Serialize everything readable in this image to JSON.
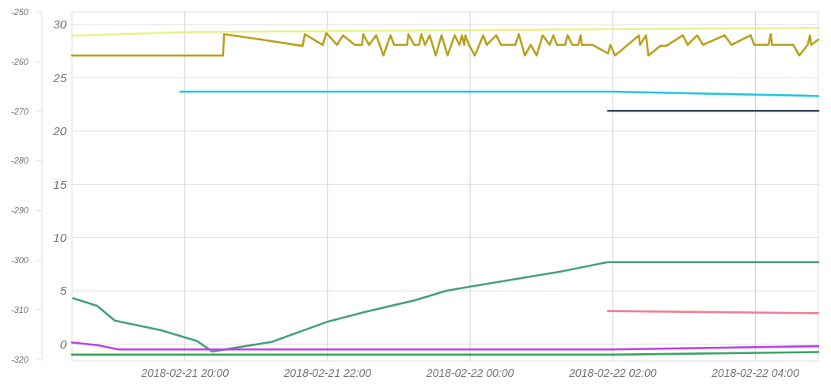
{
  "chart_data": {
    "type": "line",
    "xlim": [
      "2018-02-21T18:25",
      "2018-02-22T04:53"
    ],
    "xticks": [
      {
        "value": "2018-02-21T20:00",
        "label": "2018-02-21 20:00"
      },
      {
        "value": "2018-02-21T22:00",
        "label": "2018-02-21 22:00"
      },
      {
        "value": "2018-02-22T00:00",
        "label": "2018-02-22 00:00"
      },
      {
        "value": "2018-02-22T02:00",
        "label": "2018-02-22 02:00"
      },
      {
        "value": "2018-02-22T04:00",
        "label": "2018-02-22 04:00"
      }
    ],
    "ylim": [
      -1.6,
      31.2
    ],
    "yticks": [
      0,
      5,
      10,
      15,
      20,
      25,
      30
    ],
    "y2lim": [
      -320.3,
      -250
    ],
    "y2ticks": [
      -250,
      -260,
      -270,
      -280,
      -290,
      -300,
      -310,
      -320
    ],
    "grid": true,
    "marker": "none",
    "line_style": "solid",
    "series": [
      {
        "color": "#eaf28a",
        "x": [
          "2018-02-21T18:25",
          "2018-02-21T20:00",
          "2018-02-22T04:53"
        ],
        "values": [
          28.95,
          29.3,
          29.7
        ]
      },
      {
        "color": "#b8a21c",
        "x": [
          "2018-02-21T18:25",
          "2018-02-21T20:32",
          "2018-02-21T20:33",
          "2018-02-21T21:04",
          "2018-02-21T21:39",
          "2018-02-21T21:41",
          "2018-02-21T21:56",
          "2018-02-21T21:59",
          "2018-02-21T22:08",
          "2018-02-21T22:13",
          "2018-02-21T22:23",
          "2018-02-21T22:29",
          "2018-02-21T22:30",
          "2018-02-21T22:35",
          "2018-02-21T22:41",
          "2018-02-21T22:47",
          "2018-02-21T22:53",
          "2018-02-21T22:56",
          "2018-02-21T23:07",
          "2018-02-21T23:08",
          "2018-02-21T23:13",
          "2018-02-21T23:17",
          "2018-02-21T23:19",
          "2018-02-21T23:22",
          "2018-02-21T23:26",
          "2018-02-21T23:31",
          "2018-02-21T23:36",
          "2018-02-21T23:41",
          "2018-02-21T23:47",
          "2018-02-21T23:51",
          "2018-02-21T23:53",
          "2018-02-21T23:55",
          "2018-02-21T23:56",
          "2018-02-21T23:59",
          "2018-02-22T00:04",
          "2018-02-22T00:11",
          "2018-02-22T00:14",
          "2018-02-22T00:22",
          "2018-02-22T00:26",
          "2018-02-22T00:38",
          "2018-02-22T00:41",
          "2018-02-22T00:46",
          "2018-02-22T00:51",
          "2018-02-22T00:56",
          "2018-02-22T01:01",
          "2018-02-22T01:07",
          "2018-02-22T01:10",
          "2018-02-22T01:13",
          "2018-02-22T01:20",
          "2018-02-22T01:22",
          "2018-02-22T01:26",
          "2018-02-22T01:31",
          "2018-02-22T01:33",
          "2018-02-22T01:34",
          "2018-02-22T01:43",
          "2018-02-22T01:56",
          "2018-02-22T01:58",
          "2018-02-22T02:02",
          "2018-02-22T02:22",
          "2018-02-22T02:23",
          "2018-02-22T02:28",
          "2018-02-22T02:30",
          "2018-02-22T02:40",
          "2018-02-22T02:45",
          "2018-02-22T02:59",
          "2018-02-22T03:03",
          "2018-02-22T03:11",
          "2018-02-22T03:16",
          "2018-02-22T03:34",
          "2018-02-22T03:40",
          "2018-02-22T03:56",
          "2018-02-22T03:59",
          "2018-02-22T04:11",
          "2018-02-22T04:13",
          "2018-02-22T04:14",
          "2018-02-22T04:32",
          "2018-02-22T04:37",
          "2018-02-22T04:44",
          "2018-02-22T04:46",
          "2018-02-22T04:47",
          "2018-02-22T04:53"
        ],
        "values": [
          27.1,
          27.1,
          29.1,
          28.6,
          28.0,
          29.1,
          28.1,
          29.2,
          28.1,
          29.0,
          28.1,
          28.1,
          29.1,
          28.1,
          29.0,
          27.1,
          29.0,
          28.1,
          28.1,
          29.1,
          28.1,
          28.1,
          29.1,
          28.1,
          29.0,
          27.1,
          29.0,
          27.1,
          29.0,
          28.1,
          29.0,
          28.1,
          29.0,
          28.1,
          27.1,
          29.0,
          28.1,
          29.0,
          28.1,
          28.1,
          29.1,
          27.1,
          28.1,
          27.1,
          29.0,
          28.1,
          29.0,
          28.1,
          28.1,
          29.0,
          28.1,
          28.1,
          29.0,
          28.1,
          28.1,
          27.3,
          28.1,
          27.1,
          29.0,
          28.1,
          29.0,
          27.1,
          28.0,
          28.0,
          29.0,
          28.1,
          29.0,
          28.1,
          29.0,
          28.1,
          29.0,
          28.1,
          28.1,
          29.1,
          28.1,
          28.1,
          27.1,
          28.1,
          29.0,
          28.1,
          28.6
        ]
      },
      {
        "color": "#26c6da",
        "x": [
          "2018-02-21T19:56",
          "2018-02-22T02:00",
          "2018-02-22T04:53"
        ],
        "values": [
          23.7,
          23.7,
          23.3
        ]
      },
      {
        "color": "#37474f",
        "x": [
          "2018-02-22T01:56",
          "2018-02-22T04:53"
        ],
        "values": [
          21.9,
          21.9
        ]
      },
      {
        "color": "#43a081",
        "x": [
          "2018-02-21T18:26",
          "2018-02-21T18:46",
          "2018-02-21T19:01",
          "2018-02-21T19:40",
          "2018-02-21T20:10",
          "2018-02-21T20:23",
          "2018-02-21T21:13",
          "2018-02-21T22:00",
          "2018-02-21T22:31",
          "2018-02-21T23:13",
          "2018-02-21T23:40",
          "2018-02-22T00:00",
          "2018-02-22T01:16",
          "2018-02-22T01:56",
          "2018-02-22T04:53"
        ],
        "values": [
          4.3,
          3.6,
          2.2,
          1.3,
          0.3,
          -0.7,
          0.2,
          2.1,
          3.0,
          4.1,
          5.0,
          5.4,
          6.8,
          7.7,
          7.7
        ]
      },
      {
        "color": "#ef7f95",
        "x": [
          "2018-02-22T01:56",
          "2018-02-22T04:53"
        ],
        "values": [
          3.1,
          2.9
        ]
      },
      {
        "color": "#c040f0",
        "x": [
          "2018-02-21T18:25",
          "2018-02-21T18:46",
          "2018-02-21T19:04",
          "2018-02-22T02:00",
          "2018-02-22T04:53"
        ],
        "values": [
          0.15,
          -0.1,
          -0.5,
          -0.5,
          -0.2
        ]
      },
      {
        "color": "#3aa660",
        "x": [
          "2018-02-21T18:25",
          "2018-02-22T02:00",
          "2018-02-22T04:53"
        ],
        "values": [
          -1.0,
          -1.0,
          -0.75
        ]
      }
    ]
  }
}
